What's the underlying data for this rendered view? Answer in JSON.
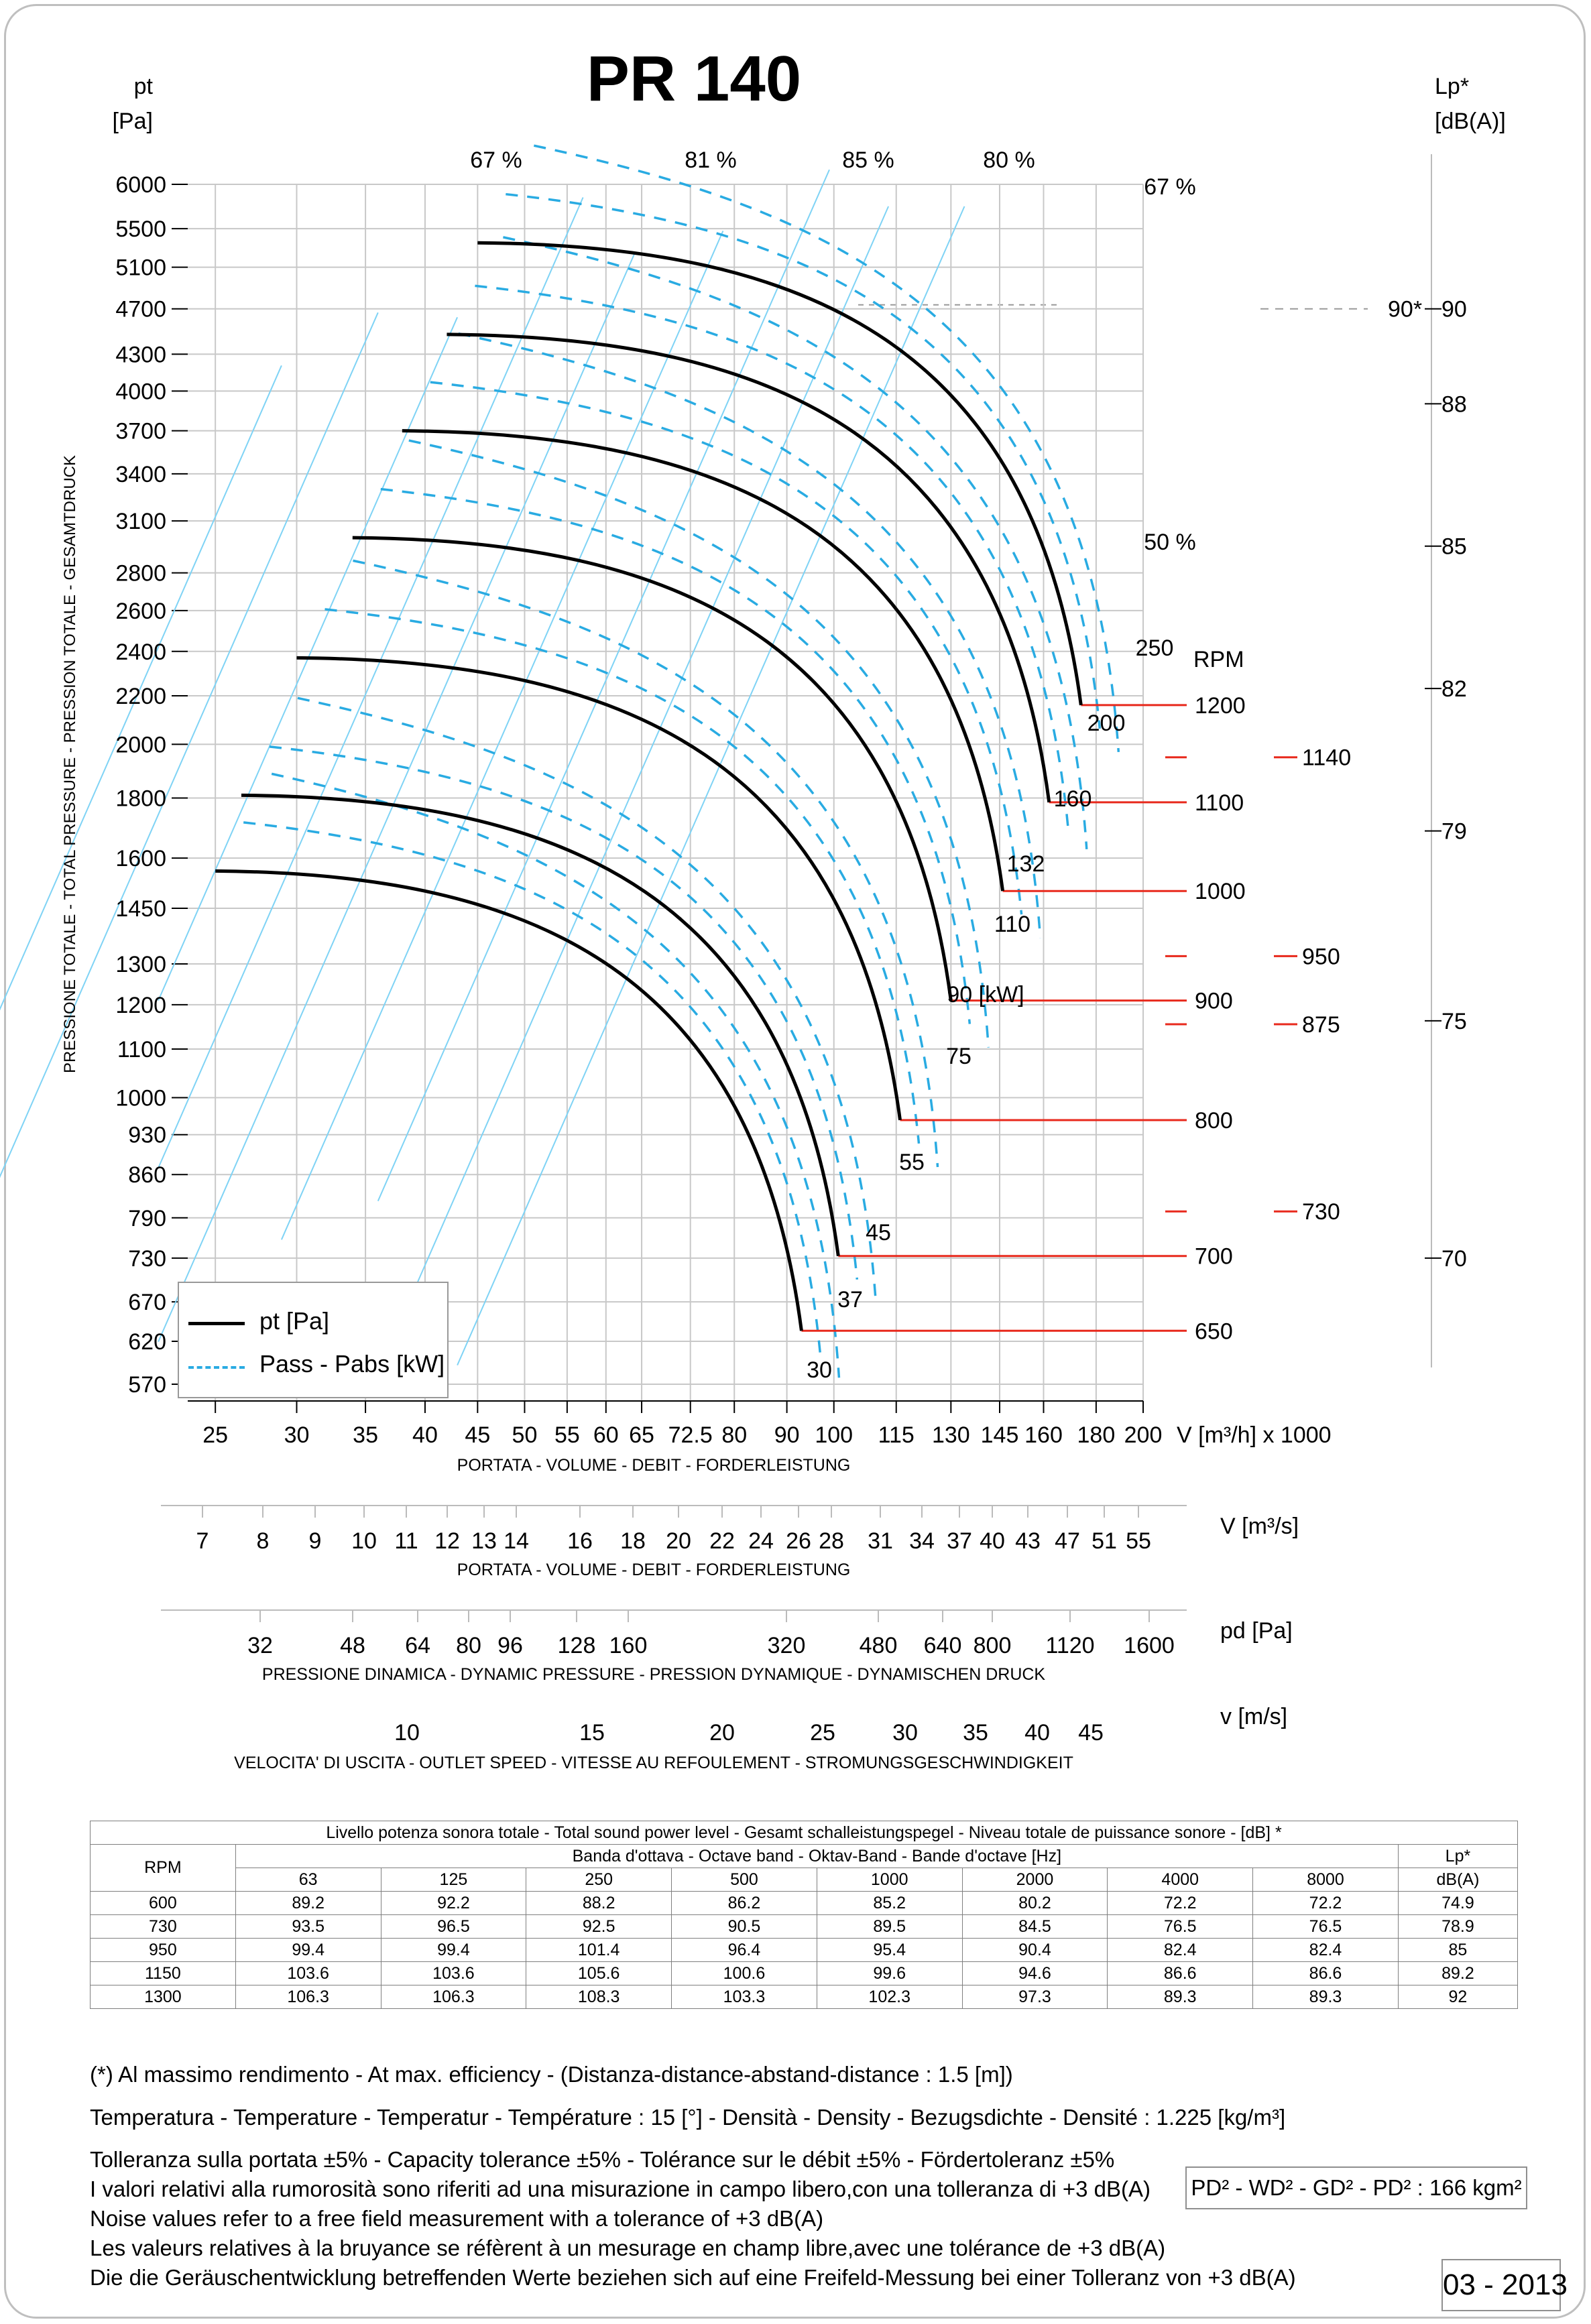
{
  "chart_data": {
    "type": "line",
    "title": "PR 140",
    "ylabel_left_unit": "pt",
    "ylabel_left_unit2": "[Pa]",
    "ylabel_left_vertical": "PRESSIONE TOTALE - TOTAL PRESSURE - PRESSION TOTALE - GESAMTDRUCK",
    "ylabel_right_unit": "Lp*",
    "ylabel_right_unit2": "[dB(A)]",
    "y_ticks": [
      "6000",
      "5500",
      "5100",
      "4700",
      "4300",
      "4000",
      "3700",
      "3400",
      "3100",
      "2800",
      "2600",
      "2400",
      "2200",
      "2000",
      "1800",
      "1600",
      "1450",
      "1300",
      "1200",
      "1100",
      "1000",
      "930",
      "860",
      "790",
      "730",
      "670",
      "620",
      "570"
    ],
    "y_right_ticks": [
      "90",
      "88",
      "85",
      "82",
      "79",
      "75",
      "70"
    ],
    "x_ticks": [
      "25",
      "30",
      "35",
      "40",
      "45",
      "50",
      "55",
      "60",
      "65",
      "72.5",
      "80",
      "90",
      "100",
      "115",
      "130",
      "145",
      "160",
      "180",
      "200"
    ],
    "x_unit": "V [m³/h]  x 1000",
    "x_caption": "PORTATA - VOLUME - DEBIT - FORDERLEISTUNG",
    "efficiency_labels": [
      "67 %",
      "81 %",
      "85 %",
      "80 %",
      "67 %",
      "50 %"
    ],
    "power_labels": [
      "250",
      "200",
      "160",
      "132",
      "110",
      "90  [kW]",
      "75",
      "55",
      "45",
      "37",
      "30"
    ],
    "rpm_label": "RPM",
    "rpm_main": [
      "1200",
      "1100",
      "1000",
      "900",
      "800",
      "700",
      "650"
    ],
    "rpm_extra": [
      "1140",
      "950",
      "875",
      "730"
    ],
    "lp_marker": "90*",
    "legend": [
      "pt [Pa]",
      "Pass - Pabs [kW]"
    ],
    "colors": {
      "pressure": "#000000",
      "power": "#29abe2",
      "rpm_line": "#e8291c",
      "efficiency": "#7fd3f5",
      "grid": "#c8c8c8"
    },
    "series": [
      {
        "rpm": "650",
        "start": [
          25,
          1560
        ],
        "end": [
          93,
          633
        ]
      },
      {
        "rpm": "700",
        "start": [
          26.5,
          1810
        ],
        "end": [
          101,
          733
        ]
      },
      {
        "rpm": "800",
        "start": [
          30,
          2370
        ],
        "end": [
          116,
          957
        ]
      },
      {
        "rpm": "900",
        "start": [
          34,
          3000
        ],
        "end": [
          130,
          1210
        ]
      },
      {
        "rpm": "1000",
        "start": [
          38,
          3700
        ],
        "end": [
          146,
          1500
        ]
      },
      {
        "rpm": "1100",
        "start": [
          42,
          4470
        ],
        "end": [
          162,
          1785
        ]
      },
      {
        "rpm": "1200",
        "start": [
          45,
          5350
        ],
        "end": [
          174,
          2160
        ]
      }
    ]
  },
  "scale_m3s": {
    "ticks": [
      "7",
      "8",
      "9",
      "10",
      "11",
      "12",
      "13",
      "14",
      "16",
      "18",
      "20",
      "22",
      "24",
      "26",
      "28",
      "31",
      "34",
      "37",
      "40",
      "43",
      "47",
      "51",
      "55"
    ],
    "unit": "V  [m³/s]",
    "caption": "PORTATA - VOLUME - DEBIT - FORDERLEISTUNG"
  },
  "scale_pd": {
    "ticks": [
      "32",
      "48",
      "64",
      "80",
      "96",
      "128",
      "160",
      "320",
      "480",
      "640",
      "800",
      "1120",
      "1600"
    ],
    "unit": "pd  [Pa]",
    "caption": "PRESSIONE DINAMICA - DYNAMIC PRESSURE - PRESSION DYNAMIQUE - DYNAMISCHEN DRUCK"
  },
  "scale_v": {
    "ticks": [
      "10",
      "15",
      "20",
      "25",
      "30",
      "35",
      "40",
      "45"
    ],
    "unit": "v  [m/s]",
    "caption": "VELOCITA' DI USCITA - OUTLET SPEED - VITESSE AU REFOULEMENT - STROMUNGSGESCHWINDIGKEIT"
  },
  "table": {
    "title": "Livello potenza sonora totale - Total sound power level - Gesamt schalleistungspegel - Niveau totale de puissance sonore - [dB]   *",
    "band_title": "Banda d'ottava - Octave band - Oktav-Band - Bande d'octave [Hz]",
    "rpm_header": "RPM",
    "lp_header": "Lp*",
    "lp_unit": "dB(A)",
    "bands": [
      "63",
      "125",
      "250",
      "500",
      "1000",
      "2000",
      "4000",
      "8000"
    ],
    "rows": [
      {
        "rpm": "600",
        "values": [
          "89.2",
          "92.2",
          "88.2",
          "86.2",
          "85.2",
          "80.2",
          "72.2",
          "72.2"
        ],
        "lp": "74.9"
      },
      {
        "rpm": "730",
        "values": [
          "93.5",
          "96.5",
          "92.5",
          "90.5",
          "89.5",
          "84.5",
          "76.5",
          "76.5"
        ],
        "lp": "78.9"
      },
      {
        "rpm": "950",
        "values": [
          "99.4",
          "99.4",
          "101.4",
          "96.4",
          "95.4",
          "90.4",
          "82.4",
          "82.4"
        ],
        "lp": "85"
      },
      {
        "rpm": "1150",
        "values": [
          "103.6",
          "103.6",
          "105.6",
          "100.6",
          "99.6",
          "94.6",
          "86.6",
          "86.6"
        ],
        "lp": "89.2"
      },
      {
        "rpm": "1300",
        "values": [
          "106.3",
          "106.3",
          "108.3",
          "103.3",
          "102.3",
          "97.3",
          "89.3",
          "89.3"
        ],
        "lp": "92"
      }
    ]
  },
  "notes": {
    "n1": "(*) Al massimo rendimento - At max. efficiency - (Distanza-distance-abstand-distance : 1.5 [m])",
    "n2": "Temperatura - Temperature - Temperatur - Température : 15 [°]  -  Densità - Density - Bezugsdichte - Densité : 1.225 [kg/m³]",
    "n3": "Tolleranza sulla portata  ±5% - Capacity tolerance ±5% - Tolérance sur le débit ±5% - Fördertoleranz ±5%",
    "n4": "I valori relativi alla rumorosità sono riferiti ad una misurazione in campo libero,con una tolleranza di +3 dB(A)",
    "n5": "Noise values refer to a free field measurement with a tolerance of +3 dB(A)",
    "n6": "Les valeurs relatives à la bruyance se réfèrent à un mesurage en champ libre,avec une tolérance de +3 dB(A)",
    "n7": "Die die Geräuschentwicklung betreffenden Werte beziehen sich auf eine Freifeld-Messung bei einer Tolleranz von +3 dB(A)"
  },
  "pd2": "PD² -  WD² - GD² -  PD²  :  166 kgm²",
  "date": "03 - 2013"
}
